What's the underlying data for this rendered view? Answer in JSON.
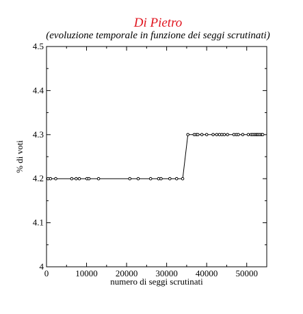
{
  "chart_data": {
    "type": "line",
    "title": "Di Pietro",
    "subtitle": "(evoluzione temporale in funzione dei seggi scrutinati)",
    "xlabel": "numero di seggi scrutinati",
    "ylabel": "% di voti",
    "xlim": [
      0,
      55000
    ],
    "ylim": [
      4.0,
      4.5
    ],
    "x_ticks": [
      "0",
      "10000",
      "20000",
      "30000",
      "40000",
      "50000"
    ],
    "y_ticks": [
      "4",
      "4.1",
      "4.2",
      "4.3",
      "4.4",
      "4.5"
    ],
    "grid": false,
    "colors": {
      "title": "#e0141e",
      "line": "#000000"
    },
    "series": [
      {
        "x": [
          400,
          1000,
          2300,
          6300,
          7400,
          8200,
          10100,
          10600,
          13000,
          20800,
          22900,
          26000,
          28000,
          28600,
          30800,
          32500,
          34000,
          35300,
          36900,
          37400,
          37800,
          38800,
          40000,
          41600,
          42500,
          43200,
          43800,
          44400,
          45200,
          46800,
          47400,
          47900,
          49000,
          50400,
          51100,
          51500,
          51900,
          52300,
          52600,
          52900,
          53300,
          53700,
          54000
        ],
        "y": [
          4.2,
          4.2,
          4.2,
          4.2,
          4.2,
          4.2,
          4.2,
          4.2,
          4.2,
          4.2,
          4.2,
          4.2,
          4.2,
          4.2,
          4.2,
          4.2,
          4.2,
          4.3,
          4.3,
          4.3,
          4.3,
          4.3,
          4.3,
          4.3,
          4.3,
          4.3,
          4.3,
          4.3,
          4.3,
          4.3,
          4.3,
          4.3,
          4.3,
          4.3,
          4.3,
          4.3,
          4.3,
          4.3,
          4.3,
          4.3,
          4.3,
          4.3,
          4.3
        ]
      }
    ]
  }
}
